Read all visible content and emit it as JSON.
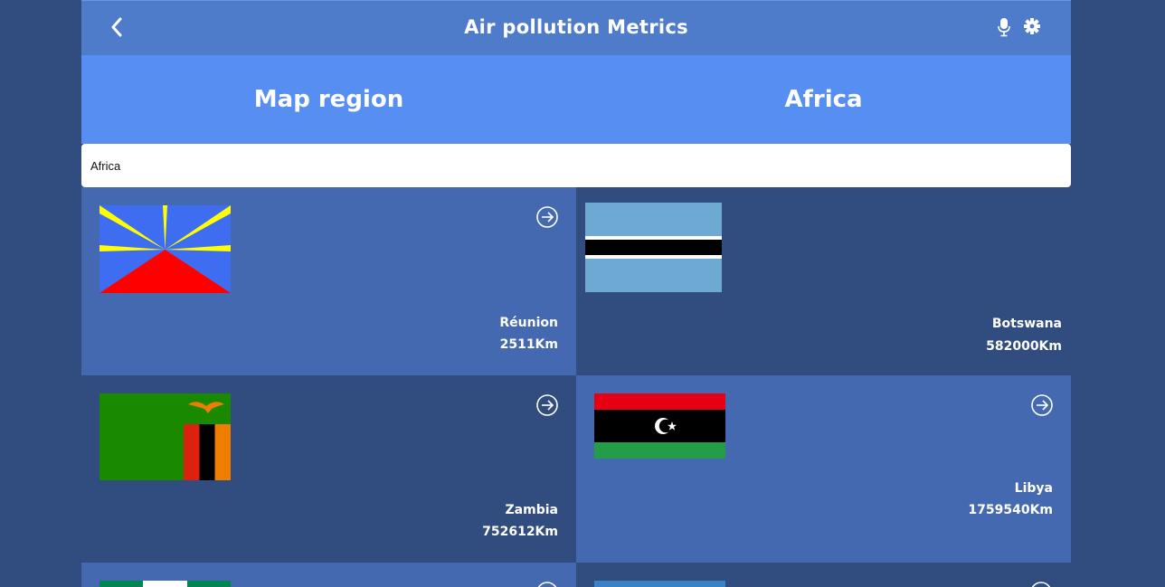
{
  "header": {
    "title": "Air pollution Metrics"
  },
  "hero": {
    "label": "Map region",
    "value": "Africa"
  },
  "search": {
    "value": "Africa"
  },
  "countries": [
    {
      "name": "Réunion",
      "area": "2511Km"
    },
    {
      "name": "Botswana",
      "area": "582000Km"
    },
    {
      "name": "Zambia",
      "area": "752612Km"
    },
    {
      "name": "Libya",
      "area": "1759540Km"
    }
  ],
  "icons": [
    "back-arrow-icon",
    "microphone-icon",
    "gear-icon",
    "arrow-circle-right-icon"
  ],
  "colors": {
    "background": "#314c7e",
    "header": "#4f7bcb",
    "hero": "#568ef2",
    "card_light": "#4569b1",
    "card_dark": "#314c7e"
  }
}
